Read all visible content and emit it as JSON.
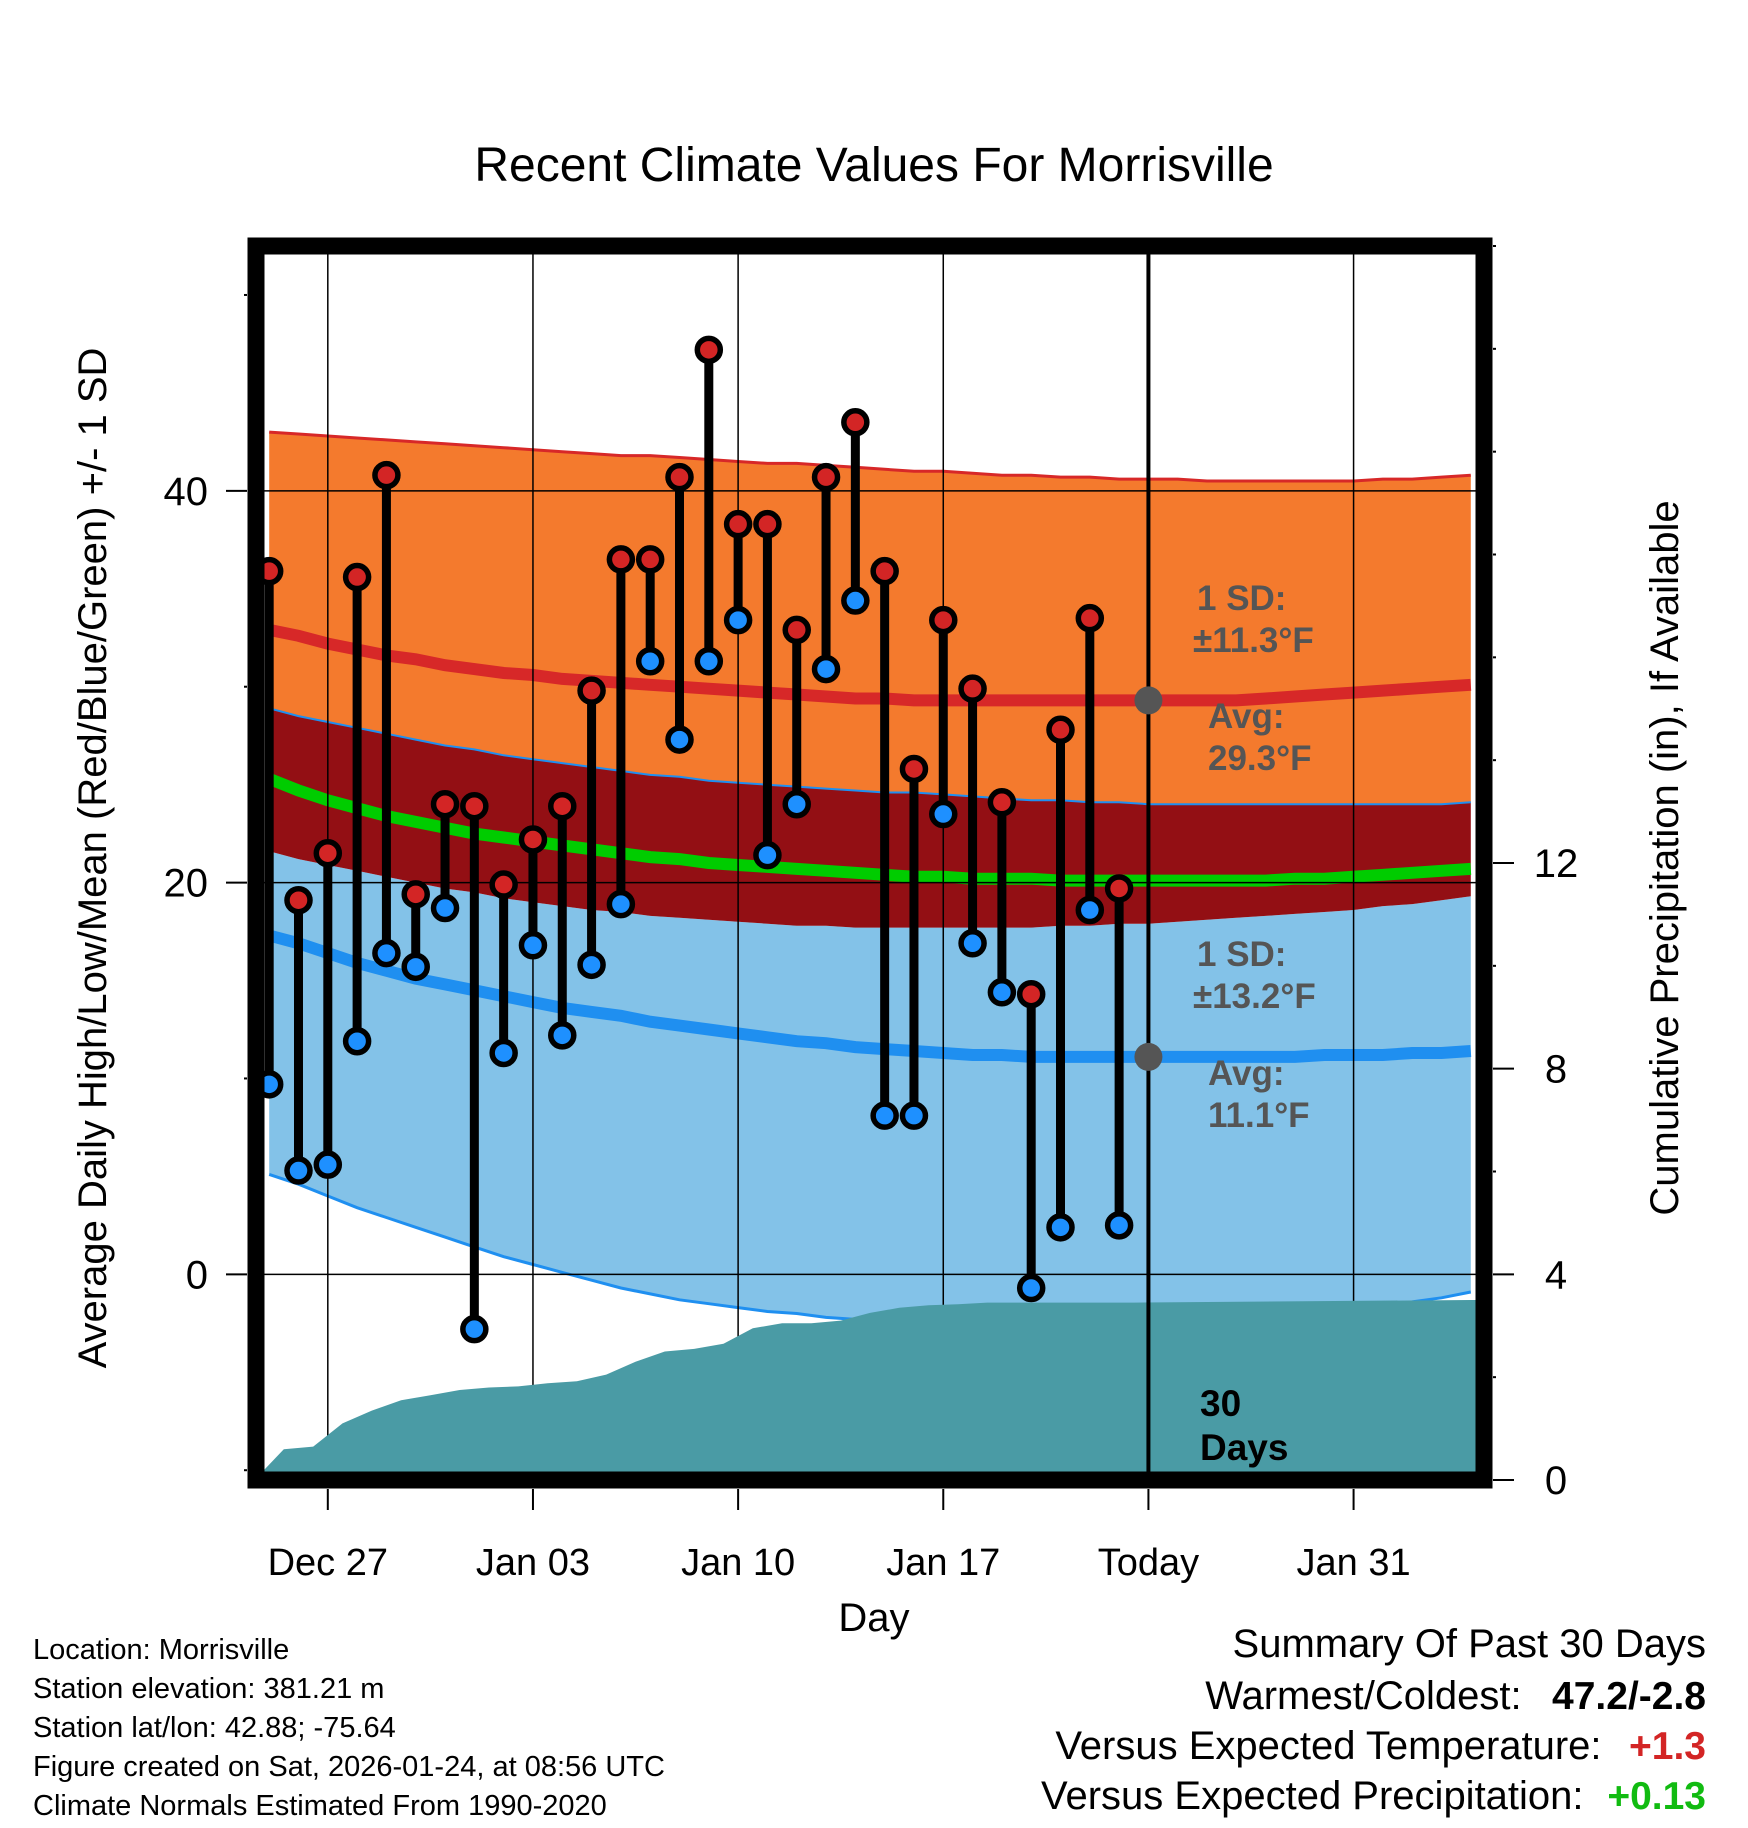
{
  "chart_data": {
    "type": "line",
    "title": "Recent Climate Values For Morrisville",
    "xlabel": "Day",
    "ylabel": "Average Daily High/Low/Mean (Red/Blue/Green) +/- 1 SD",
    "ylabel_right": "Cumulative Precipitation (in), If Available",
    "ylim": [
      -10.5,
      52.5
    ],
    "y2lim": [
      0,
      24
    ],
    "yticks": [
      0,
      20,
      40
    ],
    "y2ticks": [
      0,
      4,
      8,
      12
    ],
    "x_start_day": -27,
    "x_end_day": 14,
    "xticks": [
      {
        "day": -25,
        "label": "Dec 27"
      },
      {
        "day": -18,
        "label": "Jan 03"
      },
      {
        "day": -11,
        "label": "Jan 10"
      },
      {
        "day": -4,
        "label": "Jan 17"
      },
      {
        "day": 3,
        "label": "Today"
      },
      {
        "day": 10,
        "label": "Jan 31"
      }
    ],
    "today_day": 3,
    "observed": {
      "day": [
        -27,
        -26,
        -25,
        -24,
        -23,
        -22,
        -21,
        -20,
        -19,
        -18,
        -17,
        -16,
        -15,
        -14,
        -13,
        -12,
        -11,
        -10,
        -9,
        -8,
        -7,
        -6,
        -5,
        -4,
        -3,
        -2,
        -1,
        0,
        1,
        2
      ],
      "high": [
        35.9,
        19.1,
        21.5,
        35.6,
        40.8,
        19.4,
        24.0,
        23.9,
        19.9,
        22.2,
        23.9,
        29.8,
        36.5,
        36.5,
        40.7,
        47.2,
        38.3,
        38.3,
        32.9,
        40.7,
        43.5,
        35.9,
        25.8,
        33.4,
        29.9,
        24.1,
        14.3,
        27.8,
        33.5,
        19.7
      ],
      "low": [
        9.7,
        5.3,
        5.6,
        11.9,
        16.4,
        15.7,
        18.7,
        -2.8,
        11.3,
        16.8,
        12.2,
        15.8,
        18.9,
        31.3,
        27.3,
        31.3,
        33.4,
        21.4,
        24.0,
        30.9,
        34.4,
        8.1,
        8.1,
        23.5,
        16.9,
        14.4,
        -0.7,
        2.4,
        18.6,
        2.5
      ]
    },
    "normals": {
      "day": [
        -27,
        -26,
        -25,
        -24,
        -23,
        -22,
        -21,
        -20,
        -19,
        -18,
        -17,
        -16,
        -15,
        -14,
        -13,
        -12,
        -11,
        -10,
        -9,
        -8,
        -7,
        -6,
        -5,
        -4,
        -3,
        -2,
        -1,
        0,
        1,
        2,
        3,
        4,
        5,
        6,
        7,
        8,
        9,
        10,
        11,
        12,
        13,
        14
      ],
      "high_mean": [
        32.9,
        32.6,
        32.2,
        31.9,
        31.6,
        31.4,
        31.1,
        30.9,
        30.7,
        30.6,
        30.4,
        30.3,
        30.2,
        30.1,
        30.0,
        29.9,
        29.8,
        29.7,
        29.6,
        29.5,
        29.4,
        29.4,
        29.3,
        29.3,
        29.3,
        29.3,
        29.3,
        29.3,
        29.3,
        29.3,
        29.3,
        29.3,
        29.3,
        29.3,
        29.4,
        29.5,
        29.6,
        29.7,
        29.8,
        29.9,
        30.0,
        30.1
      ],
      "high_upper": [
        43.0,
        42.9,
        42.8,
        42.7,
        42.6,
        42.5,
        42.4,
        42.3,
        42.2,
        42.1,
        42.0,
        41.9,
        41.8,
        41.8,
        41.7,
        41.6,
        41.5,
        41.4,
        41.4,
        41.3,
        41.2,
        41.1,
        41.0,
        41.0,
        40.9,
        40.8,
        40.8,
        40.7,
        40.7,
        40.6,
        40.6,
        40.6,
        40.5,
        40.5,
        40.5,
        40.5,
        40.5,
        40.5,
        40.6,
        40.6,
        40.7,
        40.8
      ],
      "high_lower": [
        28.9,
        28.5,
        28.2,
        27.9,
        27.6,
        27.3,
        27.0,
        26.8,
        26.5,
        26.3,
        26.1,
        25.9,
        25.7,
        25.5,
        25.4,
        25.2,
        25.1,
        25.0,
        24.9,
        24.8,
        24.7,
        24.6,
        24.6,
        24.5,
        24.4,
        24.3,
        24.2,
        24.2,
        24.1,
        24.1,
        24.0,
        24.0,
        24.0,
        24.0,
        24.0,
        24.0,
        24.0,
        24.0,
        24.0,
        24.0,
        24.0,
        24.1
      ],
      "mean": [
        25.3,
        24.7,
        24.2,
        23.8,
        23.4,
        23.1,
        22.8,
        22.5,
        22.3,
        22.1,
        21.9,
        21.7,
        21.5,
        21.3,
        21.2,
        21.0,
        20.9,
        20.8,
        20.7,
        20.6,
        20.5,
        20.4,
        20.3,
        20.3,
        20.2,
        20.2,
        20.2,
        20.1,
        20.1,
        20.1,
        20.1,
        20.1,
        20.1,
        20.1,
        20.1,
        20.2,
        20.2,
        20.3,
        20.4,
        20.5,
        20.6,
        20.7
      ],
      "low_mean": [
        17.3,
        16.9,
        16.4,
        15.9,
        15.5,
        15.1,
        14.8,
        14.5,
        14.2,
        13.9,
        13.6,
        13.4,
        13.2,
        12.9,
        12.7,
        12.5,
        12.3,
        12.1,
        11.9,
        11.8,
        11.6,
        11.5,
        11.4,
        11.3,
        11.2,
        11.2,
        11.1,
        11.1,
        11.1,
        11.1,
        11.1,
        11.1,
        11.1,
        11.1,
        11.1,
        11.1,
        11.2,
        11.2,
        11.2,
        11.3,
        11.3,
        11.4
      ],
      "low_upper": [
        21.6,
        21.2,
        20.9,
        20.6,
        20.3,
        20.0,
        19.7,
        19.5,
        19.2,
        19.0,
        18.8,
        18.6,
        18.5,
        18.3,
        18.2,
        18.1,
        18.0,
        17.9,
        17.8,
        17.8,
        17.7,
        17.7,
        17.7,
        17.7,
        17.7,
        17.7,
        17.7,
        17.8,
        17.8,
        17.9,
        17.9,
        18.0,
        18.1,
        18.2,
        18.3,
        18.4,
        18.5,
        18.6,
        18.8,
        18.9,
        19.1,
        19.3
      ],
      "low_lower": [
        5.1,
        4.6,
        4.0,
        3.4,
        2.9,
        2.4,
        1.9,
        1.4,
        0.9,
        0.5,
        0.1,
        -0.3,
        -0.7,
        -1.0,
        -1.3,
        -1.5,
        -1.7,
        -1.9,
        -2.0,
        -2.2,
        -2.3,
        -2.4,
        -2.5,
        -2.5,
        -2.6,
        -2.6,
        -2.6,
        -2.6,
        -2.6,
        -2.5,
        -2.5,
        -2.5,
        -2.4,
        -2.4,
        -2.3,
        -2.2,
        -2.1,
        -1.9,
        -1.7,
        -1.4,
        -1.2,
        -0.9
      ]
    },
    "precip_cumulative": {
      "day": [
        -27.5,
        -26.5,
        -25.5,
        -24.5,
        -23.5,
        -22.5,
        -21.5,
        -20.5,
        -19.5,
        -18.5,
        -17.5,
        -16.5,
        -15.5,
        -14.5,
        -13.5,
        -12.5,
        -11.5,
        -10.5,
        -9.5,
        -8.5,
        -7.5,
        -6.5,
        -5.5,
        -4.5,
        -3.5,
        -2.5,
        -1.5,
        -0.5,
        0.5,
        1.5,
        2.5,
        14.0
      ],
      "value": [
        0.0,
        0.6,
        0.65,
        1.1,
        1.35,
        1.55,
        1.65,
        1.75,
        1.8,
        1.82,
        1.88,
        1.92,
        2.05,
        2.3,
        2.5,
        2.55,
        2.65,
        2.95,
        3.05,
        3.05,
        3.1,
        3.25,
        3.35,
        3.4,
        3.42,
        3.45,
        3.45,
        3.45,
        3.45,
        3.45,
        3.45,
        3.5
      ]
    },
    "series_colors": {
      "high_band": "#f47a2d",
      "high_line": "#d72828",
      "low_band": "#83c2e8",
      "low_line": "#1f8ff0",
      "overlap": "#930f14",
      "mean_line": "#00cc00",
      "precip": "#4a9ba5",
      "high_marker": "#d32525",
      "low_marker": "#1e90ff",
      "avg_marker": "#555555"
    },
    "annotations": {
      "high_sd_label": "1 SD:",
      "high_sd_value": "±11.3°F",
      "high_avg_label": "Avg:",
      "high_avg_value": "29.3°F",
      "low_sd_label": "1 SD:",
      "low_sd_value": "±13.2°F",
      "low_avg_label": "Avg:",
      "low_avg_value": "11.1°F",
      "days_number": "30",
      "days_word": "Days"
    }
  },
  "footer": {
    "location": "Location: Morrisville",
    "elevation": "Station elevation: 381.21 m",
    "latlon": "Station lat/lon: 42.88; -75.64",
    "created": "Figure created on Sat, 2026-01-24, at 08:56 UTC",
    "normals": "Climate Normals Estimated From 1990-2020"
  },
  "summary": {
    "title": "Summary Of Past 30 Days",
    "warmest_label": "Warmest/Coldest:",
    "warmest_value": "47.2/-2.8",
    "temp_label": "Versus Expected Temperature:",
    "temp_value": "+1.3",
    "temp_color": "#d32525",
    "precip_label": "Versus Expected Precipitation:",
    "precip_value": "+0.13",
    "precip_color": "#11bb11"
  }
}
